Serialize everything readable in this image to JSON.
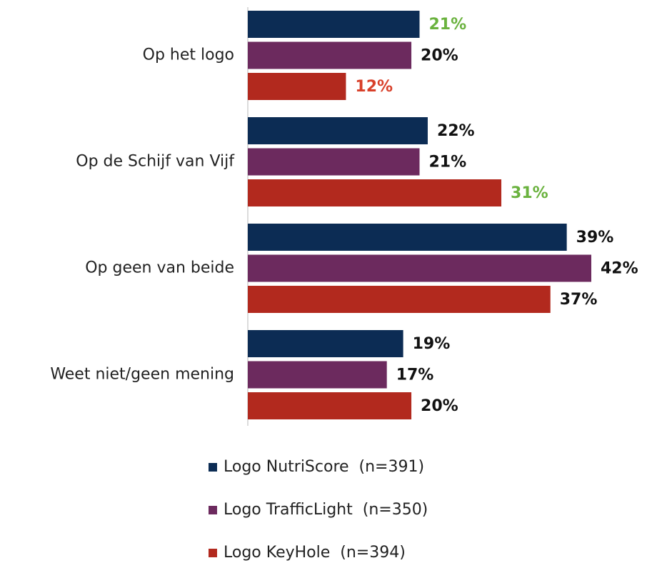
{
  "chart_data": {
    "type": "hbar",
    "categories": [
      "Op het logo",
      "Op de Schijf van Vijf",
      "Op geen van beide",
      "Weet niet/geen mening"
    ],
    "series": [
      {
        "name": "Logo NutriScore  (n=391)",
        "color": "#0c2c54",
        "values": [
          21,
          22,
          39,
          19
        ],
        "value_labels": [
          "21%",
          "22%",
          "39%",
          "19%"
        ],
        "label_colors": [
          "#6ab23e",
          "#111111",
          "#111111",
          "#111111"
        ]
      },
      {
        "name": "Logo TrafficLight  (n=350)",
        "color": "#6c2a5e",
        "values": [
          20,
          21,
          42,
          17
        ],
        "value_labels": [
          "20%",
          "21%",
          "42%",
          "17%"
        ],
        "label_colors": [
          "#111111",
          "#111111",
          "#111111",
          "#111111"
        ]
      },
      {
        "name": "Logo KeyHole  (n=394)",
        "color": "#b2291e",
        "values": [
          12,
          31,
          37,
          20
        ],
        "value_labels": [
          "12%",
          "31%",
          "37%",
          "20%"
        ],
        "label_colors": [
          "#d8402a",
          "#6ab23e",
          "#111111",
          "#111111"
        ]
      }
    ],
    "legend": "bottom"
  }
}
